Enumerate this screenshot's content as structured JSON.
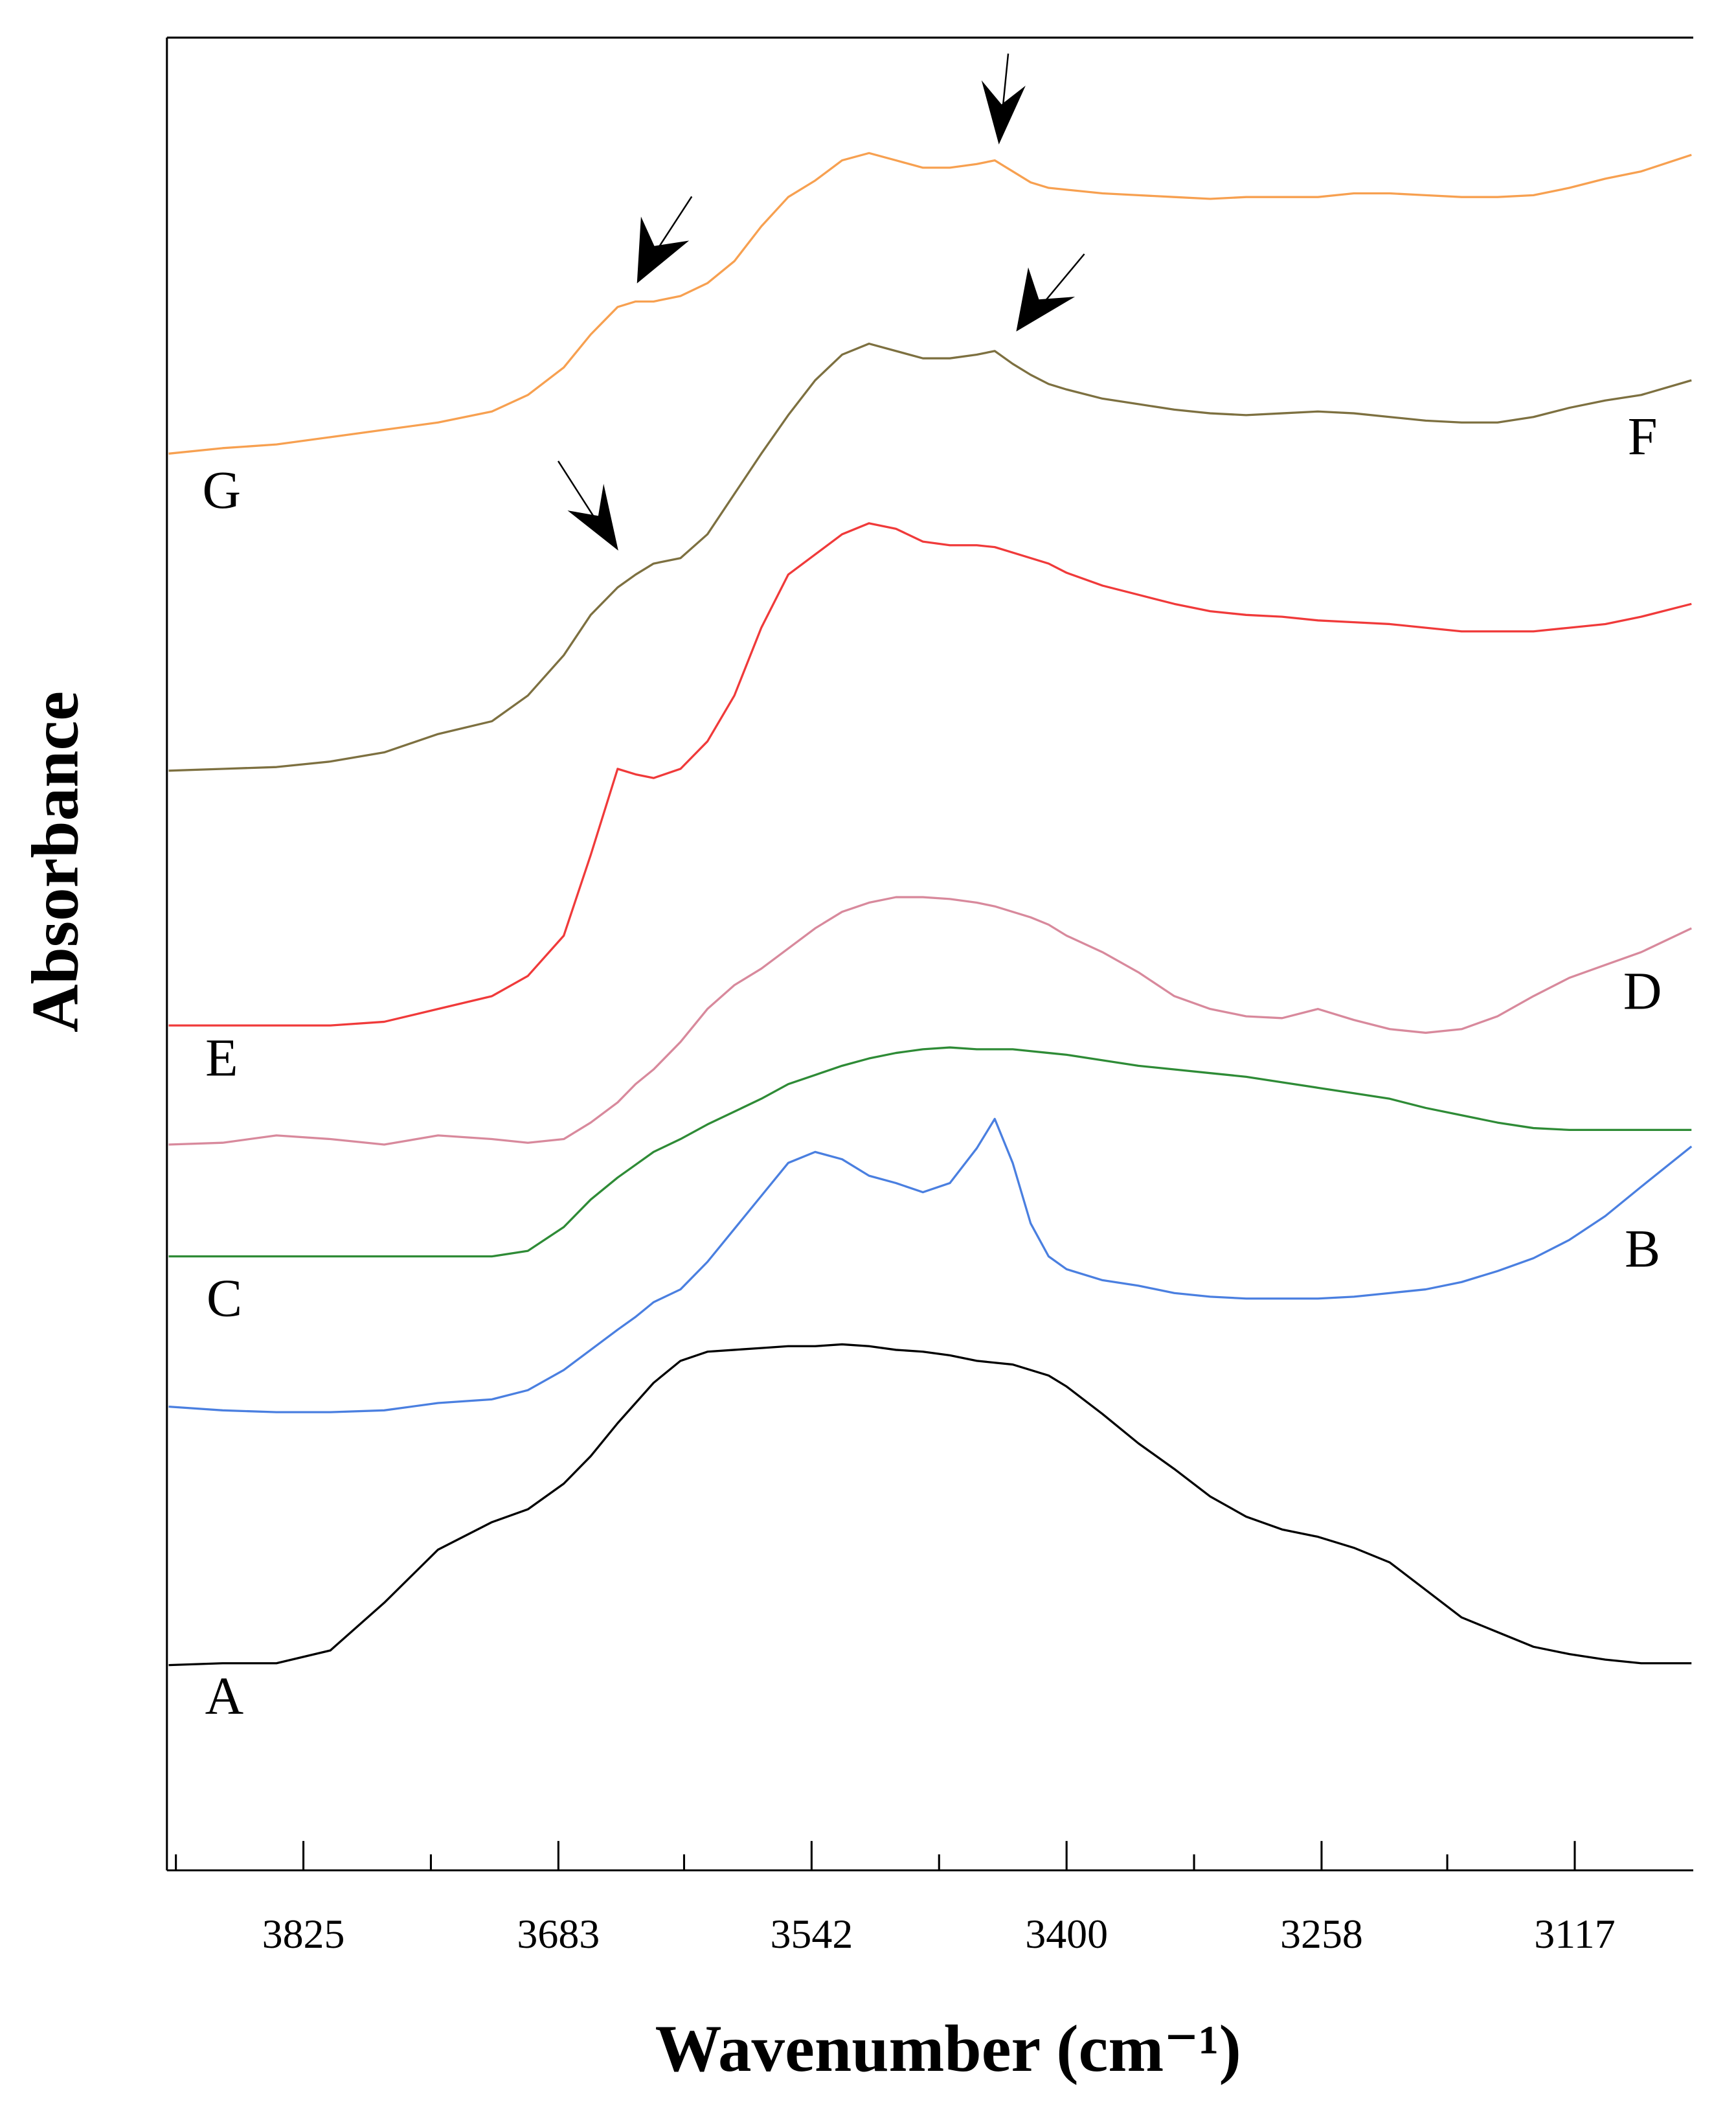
{
  "chart_data": {
    "type": "line",
    "x_label": "Wavenumber (cm⁻¹)",
    "y_label": "Absorbance",
    "xlim": [
      3901,
      3051
    ],
    "ylim": [
      0,
      100
    ],
    "xticks": [
      3825,
      3683,
      3542,
      3400,
      3258,
      3117
    ],
    "xminor_ticks": [
      3896,
      3754,
      3613,
      3471,
      3329,
      3188
    ],
    "x": [
      3900,
      3870,
      3840,
      3810,
      3780,
      3750,
      3720,
      3700,
      3680,
      3665,
      3650,
      3640,
      3630,
      3615,
      3600,
      3585,
      3570,
      3555,
      3540,
      3525,
      3510,
      3495,
      3480,
      3465,
      3450,
      3440,
      3430,
      3420,
      3410,
      3400,
      3380,
      3360,
      3340,
      3320,
      3300,
      3280,
      3260,
      3240,
      3220,
      3200,
      3180,
      3160,
      3140,
      3120,
      3100,
      3080,
      3052
    ],
    "series": [
      {
        "name": "A",
        "color": "#000000",
        "values": [
          11.2,
          11.3,
          11.3,
          12.0,
          14.6,
          17.5,
          19.0,
          19.7,
          21.1,
          22.6,
          24.4,
          25.5,
          26.6,
          27.8,
          28.3,
          28.4,
          28.5,
          28.6,
          28.6,
          28.7,
          28.6,
          28.4,
          28.3,
          28.1,
          27.8,
          27.7,
          27.6,
          27.3,
          27.0,
          26.4,
          24.9,
          23.3,
          21.9,
          20.4,
          19.3,
          18.6,
          18.2,
          17.6,
          16.8,
          15.3,
          13.8,
          13.0,
          12.2,
          11.8,
          11.5,
          11.3,
          11.3
        ]
      },
      {
        "name": "B",
        "color": "#4a7fe0",
        "values": [
          25.3,
          25.1,
          25.0,
          25.0,
          25.1,
          25.5,
          25.7,
          26.2,
          27.3,
          28.4,
          29.5,
          30.2,
          31.0,
          31.7,
          33.2,
          35.0,
          36.8,
          38.6,
          39.2,
          38.8,
          37.9,
          37.5,
          37.0,
          37.5,
          39.4,
          41.0,
          38.6,
          35.3,
          33.5,
          32.8,
          32.2,
          31.9,
          31.5,
          31.3,
          31.2,
          31.2,
          31.2,
          31.3,
          31.5,
          31.7,
          32.1,
          32.7,
          33.4,
          34.4,
          35.7,
          37.3,
          39.5
        ]
      },
      {
        "name": "C",
        "color": "#2e8b36",
        "values": [
          33.5,
          33.5,
          33.5,
          33.5,
          33.5,
          33.5,
          33.5,
          33.8,
          35.1,
          36.6,
          37.8,
          38.5,
          39.2,
          39.9,
          40.7,
          41.4,
          42.1,
          42.9,
          43.4,
          43.9,
          44.3,
          44.6,
          44.8,
          44.9,
          44.8,
          44.8,
          44.8,
          44.7,
          44.6,
          44.5,
          44.2,
          43.9,
          43.7,
          43.5,
          43.3,
          43.0,
          42.7,
          42.4,
          42.1,
          41.6,
          41.2,
          40.8,
          40.5,
          40.4,
          40.4,
          40.4,
          40.4
        ]
      },
      {
        "name": "D",
        "color": "#d8899c",
        "values": [
          39.6,
          39.7,
          40.1,
          39.9,
          39.6,
          40.1,
          39.9,
          39.7,
          39.9,
          40.8,
          41.9,
          42.9,
          43.7,
          45.2,
          47.0,
          48.3,
          49.2,
          50.3,
          51.4,
          52.3,
          52.8,
          53.1,
          53.1,
          53.0,
          52.8,
          52.6,
          52.3,
          52.0,
          51.6,
          51.0,
          50.1,
          49.0,
          47.7,
          47.0,
          46.6,
          46.5,
          47.0,
          46.4,
          45.9,
          45.7,
          45.9,
          46.6,
          47.7,
          48.7,
          49.4,
          50.1,
          51.4
        ]
      },
      {
        "name": "E",
        "color": "#f03a3a",
        "values": [
          46.1,
          46.1,
          46.1,
          46.1,
          46.3,
          47.0,
          47.7,
          48.8,
          51.0,
          55.4,
          60.1,
          59.8,
          59.6,
          60.1,
          61.6,
          64.1,
          67.8,
          70.7,
          71.8,
          72.9,
          73.5,
          73.2,
          72.5,
          72.3,
          72.3,
          72.2,
          71.9,
          71.6,
          71.3,
          70.8,
          70.1,
          69.6,
          69.1,
          68.7,
          68.5,
          68.4,
          68.2,
          68.1,
          68.0,
          67.8,
          67.6,
          67.6,
          67.6,
          67.8,
          68.0,
          68.4,
          69.1
        ]
      },
      {
        "name": "F",
        "color": "#7d7040",
        "values": [
          60.0,
          60.1,
          60.2,
          60.5,
          61.0,
          62.0,
          62.7,
          64.1,
          66.3,
          68.5,
          70.0,
          70.7,
          71.3,
          71.6,
          72.9,
          75.1,
          77.3,
          79.4,
          81.3,
          82.7,
          83.3,
          82.9,
          82.5,
          82.5,
          82.7,
          82.9,
          82.2,
          81.6,
          81.1,
          80.8,
          80.3,
          80.0,
          79.7,
          79.5,
          79.4,
          79.5,
          79.6,
          79.5,
          79.3,
          79.1,
          79.0,
          79.0,
          79.3,
          79.8,
          80.2,
          80.5,
          81.3
        ]
      },
      {
        "name": "G",
        "color": "#f7a050",
        "values": [
          77.3,
          77.6,
          77.8,
          78.2,
          78.6,
          79.0,
          79.6,
          80.5,
          82.0,
          83.8,
          85.3,
          85.6,
          85.6,
          85.9,
          86.6,
          87.8,
          89.7,
          91.3,
          92.2,
          93.3,
          93.7,
          93.3,
          92.9,
          92.9,
          93.1,
          93.3,
          92.7,
          92.1,
          91.8,
          91.7,
          91.5,
          91.4,
          91.3,
          91.2,
          91.3,
          91.3,
          91.3,
          91.5,
          91.5,
          91.4,
          91.3,
          91.3,
          91.4,
          91.8,
          92.3,
          92.7,
          93.6
        ]
      }
    ]
  }
}
